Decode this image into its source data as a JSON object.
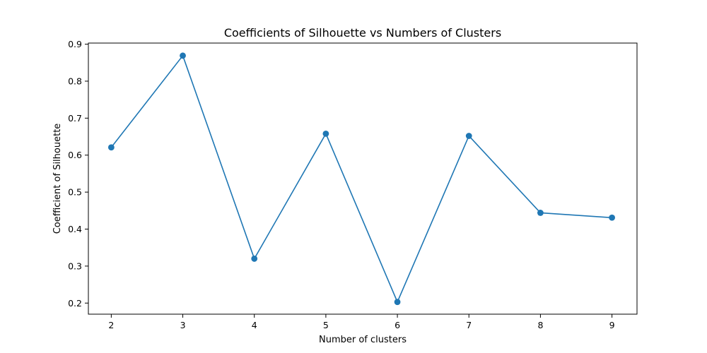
{
  "chart_data": {
    "type": "line",
    "title": "Coefficients of Silhouette vs Numbers of Clusters",
    "xlabel": "Number of clusters",
    "ylabel": "Coefficient of Silhouette",
    "x": [
      2,
      3,
      4,
      5,
      6,
      7,
      8,
      9
    ],
    "series": [
      {
        "values": [
          0.621,
          0.869,
          0.32,
          0.658,
          0.203,
          0.652,
          0.444,
          0.431
        ],
        "color": "#1f77b4",
        "marker": "circle"
      }
    ],
    "xticks": [
      "2",
      "3",
      "4",
      "5",
      "6",
      "7",
      "8",
      "9"
    ],
    "yticks": [
      "0.2",
      "0.3",
      "0.4",
      "0.5",
      "0.6",
      "0.7",
      "0.8",
      "0.9"
    ],
    "xlim": [
      1.68,
      9.35
    ],
    "ylim": [
      0.17,
      0.903
    ],
    "grid": false,
    "legend": "none"
  }
}
